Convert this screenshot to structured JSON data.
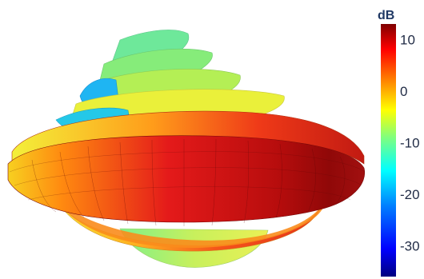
{
  "chart_data": {
    "type": "3d-surface",
    "colorbar": {
      "title": "dB",
      "range": [
        -36,
        13
      ],
      "ticks": [
        10,
        0,
        -10,
        -20,
        -30
      ],
      "tick_labels": [
        "10",
        "0",
        "-10",
        "-20",
        "-30"
      ],
      "colorscale": [
        "#00007f",
        "#0000ff",
        "#007fff",
        "#00ffff",
        "#7fff7f",
        "#ffff00",
        "#ff7f00",
        "#ff0000",
        "#7f0000"
      ]
    },
    "surface": {
      "description_levels": {
        "main_lobe_peak_db": 12,
        "lower_band_db": 4,
        "upper_lobes_db": -10,
        "back_lobe_db": -20
      }
    }
  }
}
